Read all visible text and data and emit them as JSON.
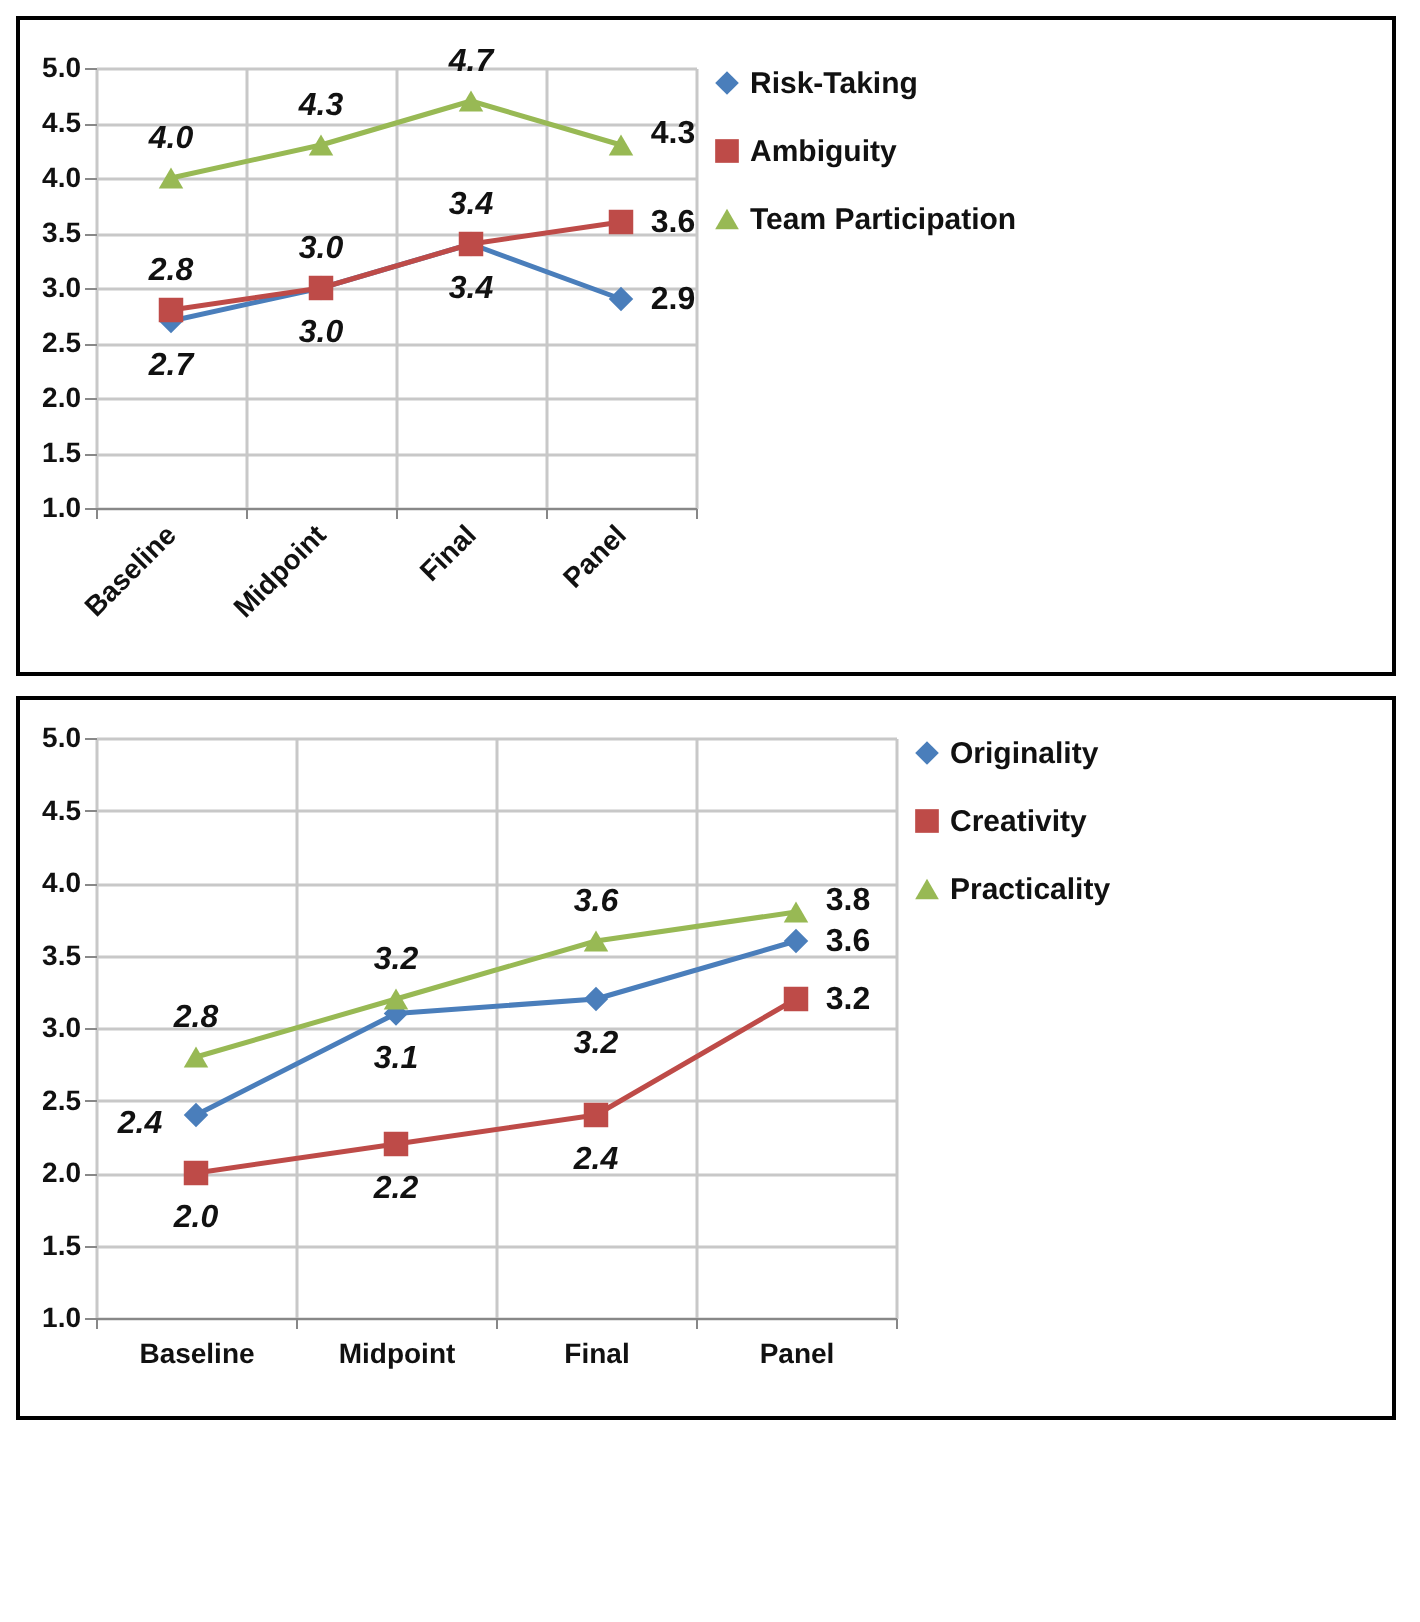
{
  "chart_data": [
    {
      "type": "line",
      "categories": [
        "Baseline",
        "Midpoint",
        "Final",
        "Panel"
      ],
      "ylim": [
        1.0,
        5.0
      ],
      "yticks": [
        {
          "value": 1,
          "label": "1.0"
        },
        {
          "value": 1.5,
          "label": "1.5"
        },
        {
          "value": 2,
          "label": "2.0"
        },
        {
          "value": 2.5,
          "label": "2.5"
        },
        {
          "value": 3,
          "label": "3.0"
        },
        {
          "value": 3.5,
          "label": "3.5"
        },
        {
          "value": 4,
          "label": "4.0"
        },
        {
          "value": 4.5,
          "label": "4.5"
        },
        {
          "value": 5,
          "label": "5.0"
        }
      ],
      "grid": true,
      "legend": "right",
      "series": [
        {
          "name": "Risk-Taking",
          "color": "#4a7ebb",
          "marker": "diamond",
          "values": [
            2.7,
            3.0,
            3.4,
            2.9
          ],
          "value_labels": [
            "2.7",
            "3.0",
            "3.4",
            "2.9"
          ]
        },
        {
          "name": "Ambiguity",
          "color": "#be4b48",
          "marker": "square",
          "values": [
            2.8,
            3.0,
            3.4,
            3.6
          ],
          "value_labels": [
            "2.8",
            "3.0",
            "3.4",
            "3.6"
          ]
        },
        {
          "name": "Team Participation",
          "color": "#98b954",
          "marker": "triangle",
          "values": [
            4.0,
            4.3,
            4.7,
            4.3
          ],
          "value_labels": [
            "4.0",
            "4.3",
            "4.7",
            "4.3"
          ]
        }
      ]
    },
    {
      "type": "line",
      "categories": [
        "Baseline",
        "Midpoint",
        "Final",
        "Panel"
      ],
      "ylim": [
        1.0,
        5.0
      ],
      "yticks": [
        {
          "value": 1,
          "label": "1.0"
        },
        {
          "value": 1.5,
          "label": "1.5"
        },
        {
          "value": 2,
          "label": "2.0"
        },
        {
          "value": 2.5,
          "label": "2.5"
        },
        {
          "value": 3,
          "label": "3.0"
        },
        {
          "value": 3.5,
          "label": "3.5"
        },
        {
          "value": 4,
          "label": "4.0"
        },
        {
          "value": 4.5,
          "label": "4.5"
        },
        {
          "value": 5,
          "label": "5.0"
        }
      ],
      "grid": true,
      "legend": "right",
      "series": [
        {
          "name": "Originality",
          "color": "#4a7ebb",
          "marker": "diamond",
          "values": [
            2.4,
            3.1,
            3.2,
            3.6
          ],
          "value_labels": [
            "2.4",
            "3.1",
            "3.2",
            "3.6"
          ]
        },
        {
          "name": "Creativity",
          "color": "#be4b48",
          "marker": "square",
          "values": [
            2.0,
            2.2,
            2.4,
            3.2
          ],
          "value_labels": [
            "2.0",
            "2.2",
            "2.4",
            "3.2"
          ]
        },
        {
          "name": "Practicality",
          "color": "#98b954",
          "marker": "triangle",
          "values": [
            2.8,
            3.2,
            3.6,
            3.8
          ],
          "value_labels": [
            "2.8",
            "3.2",
            "3.6",
            "3.8"
          ]
        }
      ]
    }
  ]
}
